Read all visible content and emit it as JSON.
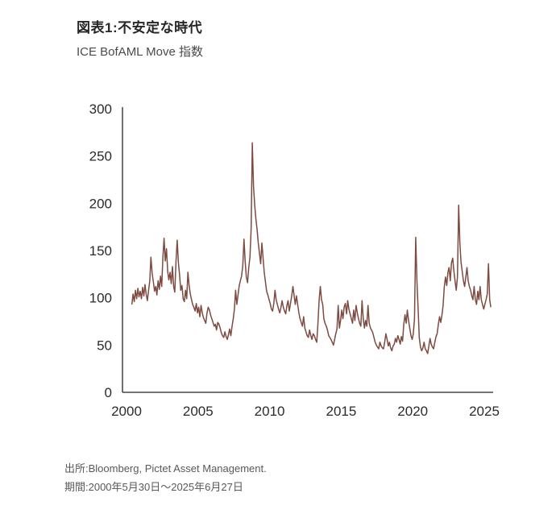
{
  "header": {
    "title": "図表1:不安定な時代",
    "subtitle": "ICE BofAML Move 指数"
  },
  "footer": {
    "source": "出所:Bloomberg, Pictet Asset Management.",
    "period": "期間:2000年5月30日〜2025年6月27日"
  },
  "chart_data": {
    "type": "line",
    "title": "ICE BofAML Move 指数",
    "series_name": "ICE BofAML MOVE Index",
    "line_color": "#7d4b41",
    "axis_color": "#222222",
    "tick_label_color": "#2b2b2b",
    "xlabel": "",
    "ylabel": "",
    "ylim": [
      0,
      300
    ],
    "y_ticks": [
      0,
      50,
      100,
      150,
      200,
      250,
      300
    ],
    "x_ticks": [
      2000,
      2005,
      2010,
      2015,
      2020,
      2025
    ],
    "grid": false,
    "legend": false,
    "x_start": 2000.375,
    "x_step_years": 0.083333,
    "values": [
      93,
      104,
      96,
      108,
      99,
      110,
      101,
      107,
      99,
      111,
      102,
      114,
      104,
      97,
      108,
      118,
      143,
      126,
      117,
      107,
      112,
      103,
      118,
      109,
      123,
      112,
      142,
      163,
      139,
      152,
      128,
      119,
      127,
      115,
      133,
      112,
      106,
      138,
      161,
      137,
      124,
      108,
      113,
      99,
      96,
      108,
      99,
      127,
      113,
      104,
      98,
      93,
      90,
      86,
      94,
      84,
      90,
      80,
      92,
      84,
      79,
      76,
      73,
      84,
      90,
      87,
      82,
      78,
      74,
      70,
      72,
      66,
      74,
      72,
      68,
      63,
      60,
      58,
      64,
      59,
      56,
      61,
      67,
      60,
      70,
      78,
      88,
      108,
      93,
      103,
      113,
      118,
      123,
      134,
      162,
      138,
      122,
      116,
      132,
      143,
      174,
      264,
      218,
      198,
      183,
      172,
      158,
      147,
      136,
      158,
      142,
      127,
      117,
      107,
      103,
      98,
      94,
      88,
      86,
      94,
      108,
      98,
      93,
      88,
      84,
      90,
      97,
      90,
      86,
      83,
      92,
      97,
      86,
      94,
      102,
      112,
      103,
      93,
      102,
      93,
      84,
      78,
      74,
      70,
      80,
      68,
      64,
      60,
      58,
      66,
      60,
      56,
      62,
      60,
      56,
      53,
      72,
      97,
      112,
      98,
      93,
      78,
      73,
      70,
      66,
      60,
      58,
      56,
      53,
      50,
      56,
      62,
      67,
      92,
      68,
      76,
      87,
      78,
      90,
      94,
      83,
      97,
      88,
      83,
      78,
      73,
      87,
      76,
      92,
      84,
      78,
      73,
      70,
      97,
      78,
      68,
      76,
      70,
      92,
      73,
      68,
      66,
      63,
      58,
      53,
      50,
      48,
      46,
      53,
      49,
      47,
      46,
      53,
      62,
      56,
      49,
      53,
      47,
      44,
      49,
      51,
      57,
      53,
      60,
      56,
      51,
      59,
      54,
      72,
      82,
      73,
      87,
      76,
      68,
      60,
      56,
      62,
      78,
      164,
      118,
      88,
      58,
      48,
      44,
      47,
      53,
      46,
      44,
      41,
      49,
      57,
      51,
      48,
      46,
      53,
      59,
      62,
      72,
      80,
      74,
      82,
      92,
      112,
      122,
      113,
      127,
      132,
      118,
      137,
      142,
      128,
      118,
      108,
      122,
      198,
      158,
      138,
      128,
      118,
      112,
      122,
      132,
      118,
      112,
      108,
      102,
      98,
      112,
      98,
      93,
      107,
      98,
      112,
      98,
      93,
      88,
      93,
      98,
      104,
      136,
      98,
      90
    ]
  }
}
